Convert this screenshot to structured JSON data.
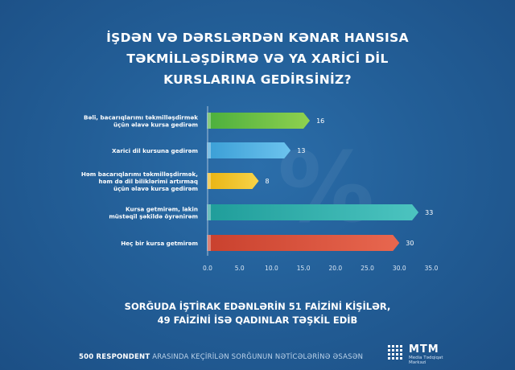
{
  "title": {
    "line1": "İŞDƏN VƏ DƏRSLƏRDƏN KƏNAR HANSISA",
    "line2": "TƏKMİLLƏŞDİRMƏ VƏ YA XARİCİ DİL",
    "line3": "KURSLARINA GEDİRSİNİZ?"
  },
  "watermark": "%",
  "chart_data": {
    "type": "bar",
    "orientation": "horizontal",
    "categories": [
      [
        "Bəli, bacarıqlarımı təkmilləşdirmək",
        "üçün əlavə kursa gedirəm"
      ],
      [
        "Xarici dil kursuna gedirəm"
      ],
      [
        "Həm bacarıqlarımı təkmilləşdirmək,",
        "həm də dil biliklərimi artırmaq",
        "üçün əlavə kursa gedirəm"
      ],
      [
        "Kursa getmirəm, lakin",
        "müstəqil şəkildə öyrənirəm"
      ],
      [
        "Heç bir kursa getmirəm"
      ]
    ],
    "values": [
      16,
      13,
      8,
      33,
      30
    ],
    "value_labels": [
      "16",
      "13",
      "8",
      "33",
      "30"
    ],
    "colors": [
      [
        "#4caf3d",
        "#8fd14f"
      ],
      [
        "#3b9fd6",
        "#6cc3ee"
      ],
      [
        "#e9b413",
        "#f7d348"
      ],
      [
        "#1f9d9a",
        "#4cc4c0"
      ],
      [
        "#c9412e",
        "#e8674f"
      ]
    ],
    "xlim": [
      0,
      35
    ],
    "xticks": [
      "0.0",
      "5.0",
      "10.0",
      "15.0",
      "20.0",
      "25.0",
      "30.0",
      "35.0"
    ],
    "grid": false
  },
  "footnote": {
    "line1": "SORĞUDA İŞTİRAK EDƏNLƏRİN 51 FAİZİNİ KİŞİLƏR,",
    "line2": "49 FAİZİNİ İSƏ QADINLAR TƏŞKİL EDİB"
  },
  "source": {
    "bold": "500 RESPONDENT",
    "rest": "ARASINDA KEÇİRİLƏN SORĞUNUN NƏTİCƏLƏRİNƏ ƏSASƏN"
  },
  "logo": {
    "name": "MTM",
    "sub1": "Media Tədqiqat",
    "sub2": "Mərkəzi"
  }
}
